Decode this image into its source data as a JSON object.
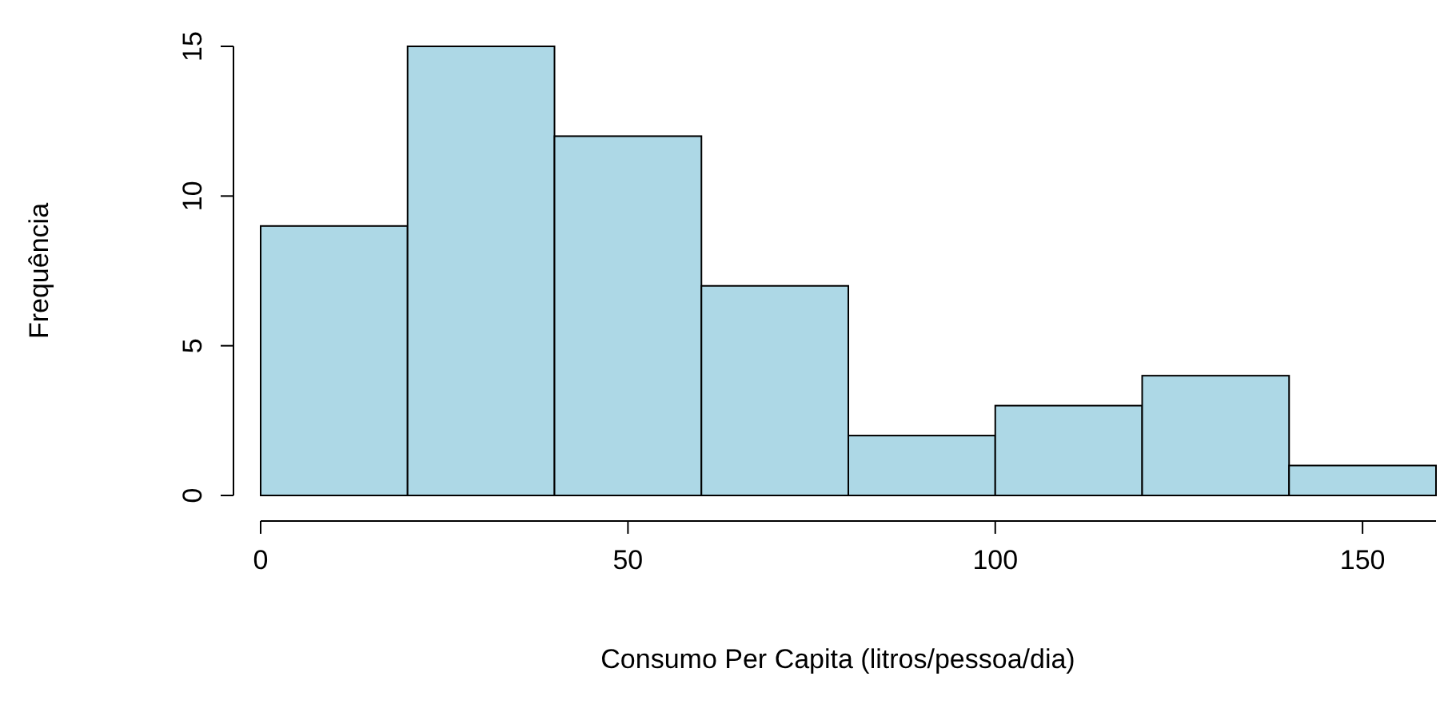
{
  "chart_data": {
    "type": "histogram",
    "xlabel": "Consumo Per Capita (litros/pessoa/dia)",
    "ylabel": "Frequência",
    "bins": [
      0,
      20,
      40,
      60,
      80,
      100,
      120,
      140,
      160
    ],
    "values": [
      9,
      15,
      12,
      7,
      2,
      3,
      4,
      1
    ],
    "color": "#add8e6",
    "xlim": [
      0,
      160
    ],
    "ylim": [
      0,
      15
    ],
    "xticks": [
      0,
      50,
      100,
      150
    ],
    "yticks": [
      0,
      5,
      10,
      15
    ],
    "grid": false
  }
}
